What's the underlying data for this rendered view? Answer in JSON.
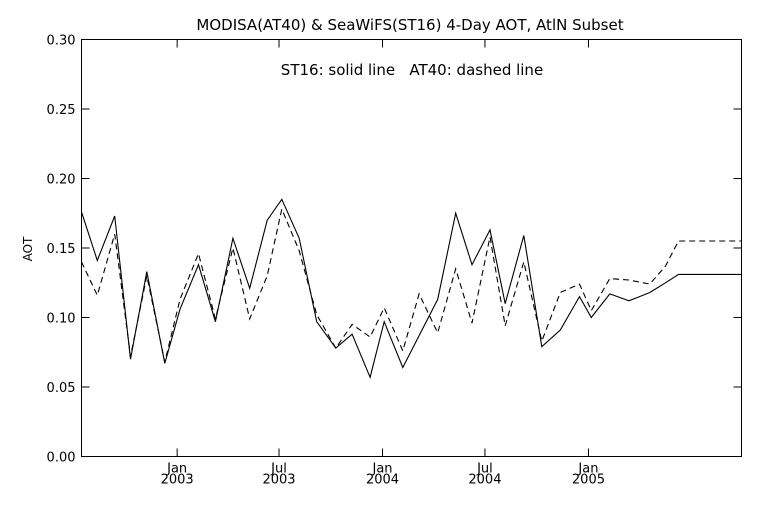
{
  "chart_data": {
    "type": "line",
    "title": "MODISA(AT40) & SeaWiFS(ST16) 4-Day AOT, AtlN Subset",
    "annotation": "ST16: solid line   AT40: dashed line",
    "ylabel": "AOT",
    "xlabel": "",
    "ylim": [
      0.0,
      0.3
    ],
    "xlim": [
      "2002-07-15",
      "2005-09-30"
    ],
    "yticks": [
      {
        "value": 0.0,
        "label": "0.00"
      },
      {
        "value": 0.05,
        "label": "0.05"
      },
      {
        "value": 0.1,
        "label": "0.10"
      },
      {
        "value": 0.15,
        "label": "0.15"
      },
      {
        "value": 0.2,
        "label": "0.20"
      },
      {
        "value": 0.25,
        "label": "0.25"
      },
      {
        "value": 0.3,
        "label": "0.30"
      }
    ],
    "xticks": [
      {
        "value": "2003-01-01",
        "month": "Jan",
        "year": "2003"
      },
      {
        "value": "2003-07-01",
        "month": "Jul",
        "year": "2003"
      },
      {
        "value": "2004-01-01",
        "month": "Jan",
        "year": "2004"
      },
      {
        "value": "2004-07-01",
        "month": "Jul",
        "year": "2004"
      },
      {
        "value": "2005-01-01",
        "month": "Jan",
        "year": "2005"
      }
    ],
    "grid": false,
    "series": [
      {
        "name": "ST16",
        "style": "solid",
        "color": "#000000",
        "points": [
          [
            "2002-07-15",
            0.176
          ],
          [
            "2002-08-12",
            0.141
          ],
          [
            "2002-09-12",
            0.173
          ],
          [
            "2002-10-10",
            0.07
          ],
          [
            "2002-11-08",
            0.133
          ],
          [
            "2002-12-10",
            0.067
          ],
          [
            "2003-01-06",
            0.106
          ],
          [
            "2003-02-08",
            0.138
          ],
          [
            "2003-03-10",
            0.097
          ],
          [
            "2003-04-10",
            0.157
          ],
          [
            "2003-05-10",
            0.121
          ],
          [
            "2003-06-10",
            0.17
          ],
          [
            "2003-07-06",
            0.185
          ],
          [
            "2003-08-06",
            0.157
          ],
          [
            "2003-09-06",
            0.097
          ],
          [
            "2003-10-10",
            0.078
          ],
          [
            "2003-11-08",
            0.088
          ],
          [
            "2003-12-10",
            0.057
          ],
          [
            "2004-01-04",
            0.097
          ],
          [
            "2004-02-06",
            0.064
          ],
          [
            "2004-03-06",
            0.087
          ],
          [
            "2004-04-08",
            0.113
          ],
          [
            "2004-05-10",
            0.175
          ],
          [
            "2004-06-08",
            0.138
          ],
          [
            "2004-07-10",
            0.163
          ],
          [
            "2004-08-06",
            0.11
          ],
          [
            "2004-09-08",
            0.159
          ],
          [
            "2004-10-10",
            0.079
          ],
          [
            "2004-11-12",
            0.091
          ],
          [
            "2004-12-16",
            0.115
          ],
          [
            "2005-01-06",
            0.1
          ],
          [
            "2005-02-08",
            0.117
          ],
          [
            "2005-03-14",
            0.112
          ],
          [
            "2005-04-20",
            0.118
          ],
          [
            "2005-05-18",
            0.125
          ],
          [
            "2005-06-10",
            0.131
          ],
          [
            "2005-09-30",
            0.131
          ]
        ]
      },
      {
        "name": "AT40",
        "style": "dashed",
        "color": "#000000",
        "points": [
          [
            "2002-07-15",
            0.14
          ],
          [
            "2002-08-12",
            0.116
          ],
          [
            "2002-09-12",
            0.16
          ],
          [
            "2002-10-10",
            0.072
          ],
          [
            "2002-11-08",
            0.13
          ],
          [
            "2002-12-10",
            0.068
          ],
          [
            "2003-01-06",
            0.113
          ],
          [
            "2003-02-08",
            0.146
          ],
          [
            "2003-03-10",
            0.099
          ],
          [
            "2003-04-10",
            0.15
          ],
          [
            "2003-05-10",
            0.099
          ],
          [
            "2003-06-10",
            0.13
          ],
          [
            "2003-07-06",
            0.178
          ],
          [
            "2003-08-06",
            0.148
          ],
          [
            "2003-09-06",
            0.102
          ],
          [
            "2003-10-10",
            0.078
          ],
          [
            "2003-11-08",
            0.095
          ],
          [
            "2003-12-10",
            0.086
          ],
          [
            "2004-01-04",
            0.107
          ],
          [
            "2004-02-06",
            0.076
          ],
          [
            "2004-03-06",
            0.117
          ],
          [
            "2004-04-08",
            0.089
          ],
          [
            "2004-05-10",
            0.135
          ],
          [
            "2004-06-08",
            0.096
          ],
          [
            "2004-07-10",
            0.158
          ],
          [
            "2004-08-06",
            0.094
          ],
          [
            "2004-09-08",
            0.14
          ],
          [
            "2004-10-10",
            0.083
          ],
          [
            "2004-11-12",
            0.118
          ],
          [
            "2004-12-16",
            0.124
          ],
          [
            "2005-01-06",
            0.105
          ],
          [
            "2005-02-08",
            0.128
          ],
          [
            "2005-03-14",
            0.127
          ],
          [
            "2005-04-20",
            0.124
          ],
          [
            "2005-05-18",
            0.137
          ],
          [
            "2005-06-10",
            0.155
          ],
          [
            "2005-09-30",
            0.155
          ]
        ]
      }
    ]
  }
}
